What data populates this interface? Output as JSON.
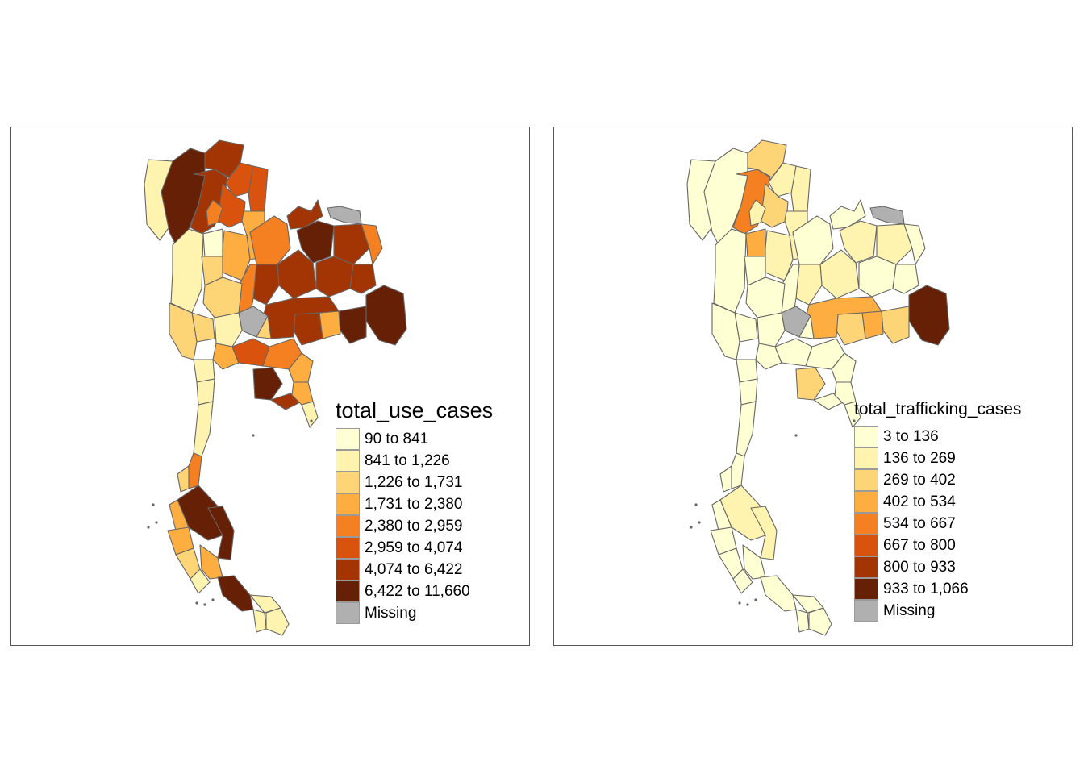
{
  "colors": {
    "c1": "#ffffd4",
    "c2": "#fff3b0",
    "c3": "#fed576",
    "c4": "#feae40",
    "c5": "#f48021",
    "c6": "#d9530e",
    "c7": "#a33504",
    "c8": "#662005",
    "missing": "#b0b0b0",
    "border": "#666666"
  },
  "panels": [
    {
      "legend_title": "total_use_cases",
      "legend_items": [
        "90 to 841",
        "841 to 1,226",
        "1,226 to 1,731",
        "1,731 to 2,380",
        "2,380 to 2,959",
        "2,959 to 4,074",
        "4,074 to 6,422",
        "6,422 to 11,660",
        "Missing"
      ],
      "legend_colors": [
        "c1",
        "c2",
        "c3",
        "c4",
        "c5",
        "c6",
        "c7",
        "c8",
        "missing"
      ]
    },
    {
      "legend_title": "total_trafficking_cases",
      "legend_items": [
        "3 to 136",
        "136 to 269",
        "269 to 402",
        "402 to 534",
        "534 to 667",
        "667 to 800",
        "800 to 933",
        "933 to 1,066",
        "Missing"
      ],
      "legend_colors": [
        "c1",
        "c2",
        "c3",
        "c4",
        "c5",
        "c6",
        "c7",
        "c8",
        "missing"
      ]
    }
  ],
  "region_classes": {
    "use": {
      "west-north": "c2",
      "mae-hong-son": "c8",
      "chiang-mai": "c7",
      "chiang-rai": "c7",
      "phayao": "c6",
      "nan": "c6",
      "lampang": "c6",
      "lamphun": "c5",
      "phrae": "c4",
      "uttaradit": "c4",
      "tak": "c2",
      "sukhothai": "c1",
      "phitsanulok": "c4",
      "loei": "c5",
      "nong-khai": "c7",
      "bueng-kan": "missing",
      "udon": "c8",
      "sakon": "c7",
      "nakhon-phanom": "c5",
      "khon-kaen": "c7",
      "kalasin": "c7",
      "mukdahan": "c7",
      "chaiyaphum": "c7",
      "ubon": "c8",
      "sisaket": "c8",
      "surin": "c4",
      "buriram": "c7",
      "nakhon-ratchasima": "c7",
      "phetchabun": "c5",
      "kamphaeng": "c3",
      "nakhon-sawan": "c3",
      "lopburi": "missing",
      "uthai": "c3",
      "kanchanaburi": "c3",
      "suphanburi": "c2",
      "central-a": "c4",
      "bangkok": "c6",
      "central-b": "c5",
      "chonburi": "c8",
      "rayong": "c7",
      "chanthaburi": "c4",
      "trat": "c2",
      "saraburi": "c3",
      "prachinburi": "c4",
      "ratchaburi": "c2",
      "phetchaburi": "c2",
      "prachuap": "c2",
      "chumphon": "c5",
      "ranong": "c3",
      "surat": "c8",
      "phangnga": "c4",
      "krabi": "c4",
      "nakhon-si": "c8",
      "trang": "c3",
      "phatthalung": "c4",
      "satun": "c2",
      "songkhla": "c8",
      "pattani": "c2",
      "yala": "c2",
      "narathiwat": "c2"
    },
    "trafficking": {
      "west-north": "c1",
      "mae-hong-son": "c1",
      "chiang-mai": "c5",
      "chiang-rai": "c3",
      "phayao": "c2",
      "nan": "c2",
      "lampang": "c3",
      "lamphun": "c2",
      "phrae": "c2",
      "uttaradit": "c2",
      "tak": "c1",
      "sukhothai": "c4",
      "phitsanulok": "c2",
      "loei": "c1",
      "nong-khai": "c1",
      "bueng-kan": "missing",
      "udon": "c2",
      "sakon": "c2",
      "nakhon-phanom": "c1",
      "khon-kaen": "c2",
      "kalasin": "c1",
      "mukdahan": "c1",
      "chaiyaphum": "c2",
      "ubon": "c8",
      "sisaket": "c3",
      "surin": "c4",
      "buriram": "c3",
      "nakhon-ratchasima": "c4",
      "phetchabun": "c1",
      "kamphaeng": "c1",
      "nakhon-sawan": "c1",
      "lopburi": "missing",
      "uthai": "c1",
      "kanchanaburi": "c1",
      "suphanburi": "c1",
      "central-a": "c1",
      "bangkok": "c1",
      "central-b": "c1",
      "chonburi": "c3",
      "rayong": "c1",
      "chanthaburi": "c1",
      "trat": "c1",
      "saraburi": "c1",
      "prachinburi": "c1",
      "ratchaburi": "c1",
      "phetchaburi": "c1",
      "prachuap": "c1",
      "chumphon": "c1",
      "ranong": "c1",
      "surat": "c2",
      "phangnga": "c1",
      "krabi": "c1",
      "nakhon-si": "c2",
      "trang": "c1",
      "phatthalung": "c1",
      "satun": "c1",
      "songkhla": "c1",
      "pattani": "c1",
      "yala": "c1",
      "narathiwat": "c1"
    }
  }
}
